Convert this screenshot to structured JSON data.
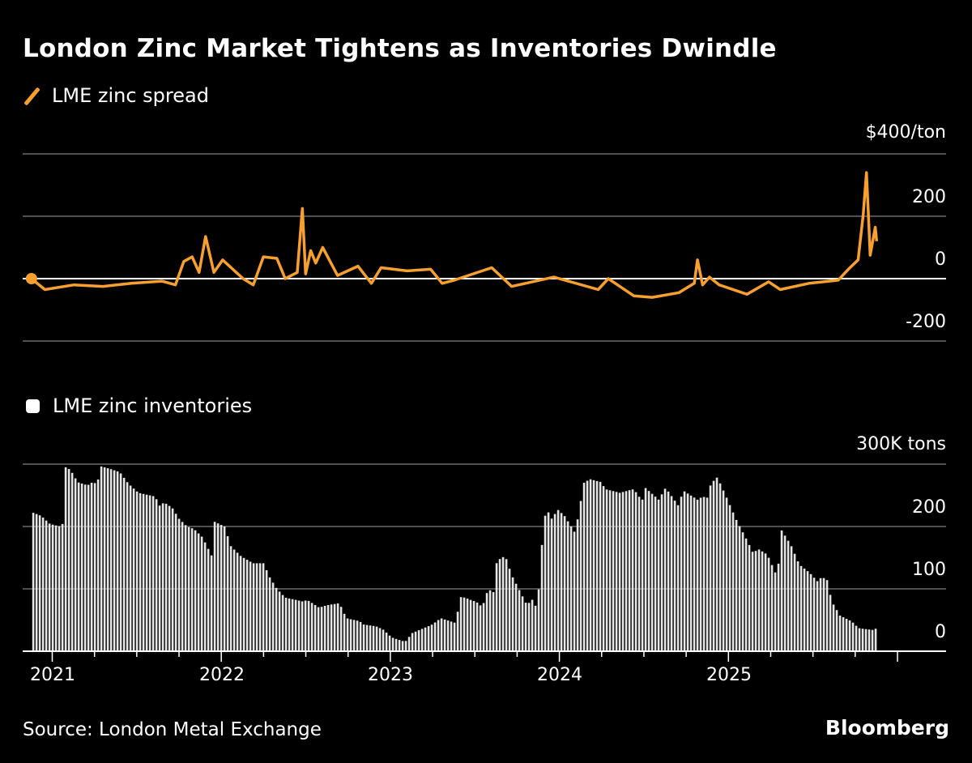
{
  "title": "London Zinc Market Tightens as Inventories Dwindle",
  "source": "Source: London Metal Exchange",
  "logo": "Bloomberg",
  "x_axis": {
    "tick_labels": [
      "2021",
      "2022",
      "2023",
      "2024",
      "2025"
    ]
  },
  "chart_data": [
    {
      "type": "line",
      "legend": "LME zinc spread",
      "color": "#f7a030",
      "y_unit_label": "$400/ton",
      "y_ticks": [
        "$400/ton",
        "200",
        "0",
        "-200"
      ],
      "y_tick_values": [
        400,
        200,
        0,
        -200
      ],
      "ylim": [
        -200,
        400
      ],
      "grid": true,
      "points": [
        [
          "2020-11-17",
          0
        ],
        [
          "2020-12-16",
          -35
        ],
        [
          "2021-02-17",
          -20
        ],
        [
          "2021-04-20",
          -25
        ],
        [
          "2021-06-21",
          -15
        ],
        [
          "2021-08-26",
          -8
        ],
        [
          "2021-09-24",
          -20
        ],
        [
          "2021-10-12",
          55
        ],
        [
          "2021-10-30",
          70
        ],
        [
          "2021-11-14",
          20
        ],
        [
          "2021-11-28",
          135
        ],
        [
          "2021-12-16",
          20
        ],
        [
          "2022-01-04",
          60
        ],
        [
          "2022-02-17",
          0
        ],
        [
          "2022-03-11",
          -20
        ],
        [
          "2022-04-02",
          70
        ],
        [
          "2022-05-01",
          65
        ],
        [
          "2022-05-19",
          0
        ],
        [
          "2022-06-14",
          20
        ],
        [
          "2022-06-25",
          225
        ],
        [
          "2022-07-02",
          15
        ],
        [
          "2022-07-13",
          90
        ],
        [
          "2022-07-24",
          50
        ],
        [
          "2022-08-08",
          100
        ],
        [
          "2022-09-09",
          10
        ],
        [
          "2022-10-23",
          40
        ],
        [
          "2022-11-21",
          -15
        ],
        [
          "2022-12-12",
          35
        ],
        [
          "2023-02-06",
          25
        ],
        [
          "2023-03-29",
          30
        ],
        [
          "2023-04-23",
          -15
        ],
        [
          "2023-05-19",
          -5
        ],
        [
          "2023-08-08",
          35
        ],
        [
          "2023-09-20",
          -25
        ],
        [
          "2023-12-20",
          5
        ],
        [
          "2024-03-25",
          -35
        ],
        [
          "2024-04-16",
          0
        ],
        [
          "2024-06-10",
          -55
        ],
        [
          "2024-07-20",
          -60
        ],
        [
          "2024-09-16",
          -45
        ],
        [
          "2024-10-19",
          -15
        ],
        [
          "2024-10-26",
          60
        ],
        [
          "2024-11-06",
          -20
        ],
        [
          "2024-11-21",
          5
        ],
        [
          "2024-12-12",
          -20
        ],
        [
          "2025-02-10",
          -50
        ],
        [
          "2025-03-29",
          -10
        ],
        [
          "2025-04-23",
          -35
        ],
        [
          "2025-06-24",
          -15
        ],
        [
          "2025-08-26",
          -5
        ],
        [
          "2025-09-17",
          30
        ],
        [
          "2025-10-08",
          60
        ],
        [
          "2025-10-19",
          205
        ],
        [
          "2025-10-26",
          340
        ],
        [
          "2025-10-30",
          210
        ],
        [
          "2025-11-03",
          75
        ],
        [
          "2025-11-14",
          165
        ],
        [
          "2025-11-17",
          120
        ]
      ]
    },
    {
      "type": "bar",
      "legend": "LME zinc inventories",
      "color": "#ffffff",
      "y_unit_label": "300K tons",
      "y_ticks": [
        "300K tons",
        "200",
        "100",
        "0"
      ],
      "y_tick_values": [
        300,
        200,
        100,
        0
      ],
      "ylim": [
        0,
        300
      ],
      "grid": true,
      "frequency": "weekly",
      "points": [
        [
          "2020-11-21",
          222
        ],
        [
          "2020-12-08",
          217
        ],
        [
          "2020-12-27",
          204
        ],
        [
          "2021-01-19",
          200
        ],
        [
          "2021-01-22",
          190
        ],
        [
          "2021-01-30",
          295
        ],
        [
          "2021-02-09",
          291
        ],
        [
          "2021-02-25",
          271
        ],
        [
          "2021-03-18",
          266
        ],
        [
          "2021-03-29",
          271
        ],
        [
          "2021-04-09",
          268
        ],
        [
          "2021-04-13",
          297
        ],
        [
          "2021-05-08",
          292
        ],
        [
          "2021-05-27",
          287
        ],
        [
          "2021-06-14",
          269
        ],
        [
          "2021-07-06",
          254
        ],
        [
          "2021-08-11",
          248
        ],
        [
          "2021-08-22",
          232
        ],
        [
          "2021-08-30",
          239
        ],
        [
          "2021-09-17",
          230
        ],
        [
          "2021-10-01",
          213
        ],
        [
          "2021-10-19",
          200
        ],
        [
          "2021-11-03",
          196
        ],
        [
          "2021-11-21",
          183
        ],
        [
          "2021-12-12",
          152
        ],
        [
          "2021-12-16",
          208
        ],
        [
          "2022-01-08",
          200
        ],
        [
          "2022-01-22",
          168
        ],
        [
          "2022-02-13",
          152
        ],
        [
          "2022-03-11",
          141
        ],
        [
          "2022-04-02",
          141
        ],
        [
          "2022-04-16",
          118
        ],
        [
          "2022-05-01",
          100
        ],
        [
          "2022-05-19",
          86
        ],
        [
          "2022-06-25",
          80
        ],
        [
          "2022-07-06",
          82
        ],
        [
          "2022-07-31",
          70
        ],
        [
          "2022-08-19",
          74
        ],
        [
          "2022-09-13",
          77
        ],
        [
          "2022-09-28",
          53
        ],
        [
          "2022-10-27",
          48
        ],
        [
          "2022-11-03",
          43
        ],
        [
          "2022-12-01",
          40
        ],
        [
          "2022-12-16",
          35
        ],
        [
          "2023-01-04",
          22
        ],
        [
          "2023-02-02",
          15
        ],
        [
          "2023-02-17",
          29
        ],
        [
          "2023-03-14",
          37
        ],
        [
          "2023-04-02",
          43
        ],
        [
          "2023-04-20",
          53
        ],
        [
          "2023-05-23",
          45
        ],
        [
          "2023-05-31",
          87
        ],
        [
          "2023-06-10",
          86
        ],
        [
          "2023-07-06",
          79
        ],
        [
          "2023-07-20",
          70
        ],
        [
          "2023-07-24",
          90
        ],
        [
          "2023-08-04",
          98
        ],
        [
          "2023-08-11",
          92
        ],
        [
          "2023-08-19",
          145
        ],
        [
          "2023-09-06",
          153
        ],
        [
          "2023-09-20",
          122
        ],
        [
          "2023-10-05",
          100
        ],
        [
          "2023-10-23",
          74
        ],
        [
          "2023-11-03",
          83
        ],
        [
          "2023-11-14",
          68
        ],
        [
          "2023-11-21",
          133
        ],
        [
          "2023-11-28",
          211
        ],
        [
          "2023-12-06",
          226
        ],
        [
          "2023-12-20",
          206
        ],
        [
          "2023-12-24",
          230
        ],
        [
          "2024-01-12",
          217
        ],
        [
          "2024-02-03",
          191
        ],
        [
          "2024-02-14",
          226
        ],
        [
          "2024-02-21",
          269
        ],
        [
          "2024-03-07",
          276
        ],
        [
          "2024-04-01",
          271
        ],
        [
          "2024-04-09",
          260
        ],
        [
          "2024-05-11",
          254
        ],
        [
          "2024-06-10",
          260
        ],
        [
          "2024-06-28",
          241
        ],
        [
          "2024-07-05",
          262
        ],
        [
          "2024-08-03",
          243
        ],
        [
          "2024-08-18",
          262
        ],
        [
          "2024-09-16",
          232
        ],
        [
          "2024-09-24",
          258
        ],
        [
          "2024-10-26",
          243
        ],
        [
          "2024-11-06",
          248
        ],
        [
          "2024-11-17",
          246
        ],
        [
          "2024-11-24",
          269
        ],
        [
          "2024-12-08",
          279
        ],
        [
          "2024-12-27",
          248
        ],
        [
          "2025-01-19",
          209
        ],
        [
          "2025-02-10",
          178
        ],
        [
          "2025-02-25",
          155
        ],
        [
          "2025-03-04",
          165
        ],
        [
          "2025-03-26",
          155
        ],
        [
          "2025-04-17",
          118
        ],
        [
          "2025-04-24",
          196
        ],
        [
          "2025-05-16",
          170
        ],
        [
          "2025-06-03",
          139
        ],
        [
          "2025-06-25",
          126
        ],
        [
          "2025-07-16",
          109
        ],
        [
          "2025-07-20",
          120
        ],
        [
          "2025-08-04",
          113
        ],
        [
          "2025-08-11",
          81
        ],
        [
          "2025-08-30",
          57
        ],
        [
          "2025-09-24",
          48
        ],
        [
          "2025-10-09",
          37
        ],
        [
          "2025-11-10",
          34
        ],
        [
          "2025-11-17",
          37
        ]
      ]
    }
  ]
}
